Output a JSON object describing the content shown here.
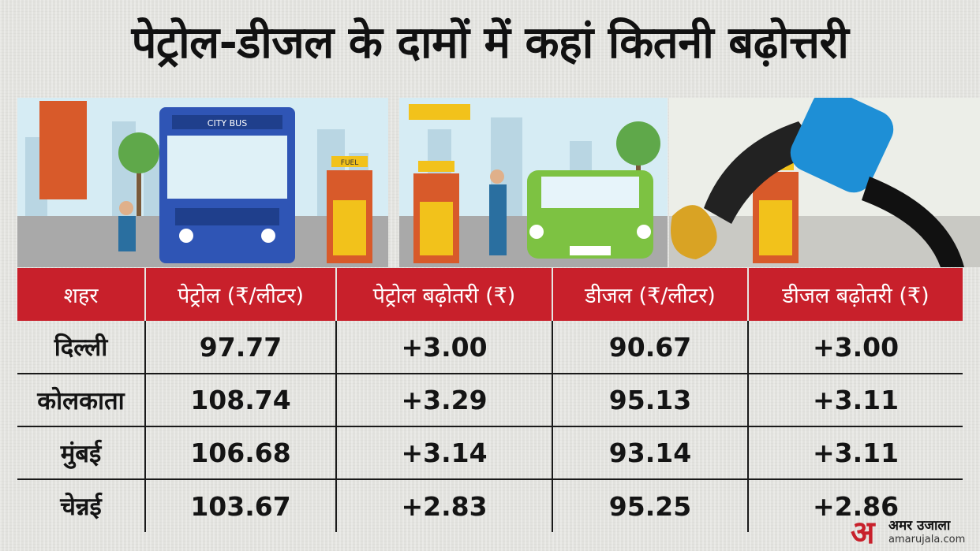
{
  "headline": "पेट्रोल-डीजल के दामों में कहां कितनी बढ़ोत्तरी",
  "illustration": {
    "bus_sign": "CITY BUS",
    "pump_label": "FUEL"
  },
  "table": {
    "headers": [
      "शहर",
      "पेट्रोल (₹/लीटर)",
      "पेट्रोल बढ़ोतरी (₹)",
      "डीजल (₹/लीटर)",
      "डीजल बढ़ोतरी (₹)"
    ],
    "rows": [
      {
        "city": "दिल्ली",
        "petrol": "97.77",
        "petrol_hike": "+3.00",
        "diesel": "90.67",
        "diesel_hike": "+3.00"
      },
      {
        "city": "कोलकाता",
        "petrol": "108.74",
        "petrol_hike": "+3.29",
        "diesel": "95.13",
        "diesel_hike": "+3.11"
      },
      {
        "city": "मुंबई",
        "petrol": "106.68",
        "petrol_hike": "+3.14",
        "diesel": "93.14",
        "diesel_hike": "+3.11"
      },
      {
        "city": "चेन्नई",
        "petrol": "103.67",
        "petrol_hike": "+2.83",
        "diesel": "95.25",
        "diesel_hike": "+2.86"
      }
    ]
  },
  "logo": {
    "mark": "अ",
    "name": "अमर उजाला",
    "url": "amarujala.com"
  },
  "colors": {
    "header_red": "#c8202b",
    "bus_blue": "#2f55b5",
    "car_green": "#7dc242",
    "pump_yellow": "#f2c21b",
    "pump_red": "#d85a2a",
    "nozzle_blue": "#1e8fd6"
  }
}
